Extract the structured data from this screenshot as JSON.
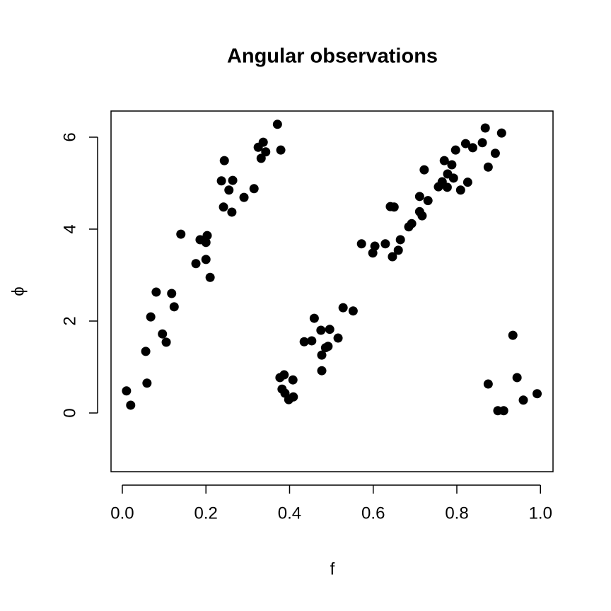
{
  "chart_data": {
    "type": "scatter",
    "title": "Angular observations",
    "x_label": "f",
    "y_label": "ϕ",
    "x": [
      0.01,
      0.02,
      0.056,
      0.059,
      0.068,
      0.081,
      0.096,
      0.105,
      0.118,
      0.124,
      0.14,
      0.176,
      0.186,
      0.2,
      0.2,
      0.203,
      0.21,
      0.237,
      0.244,
      0.242,
      0.255,
      0.264,
      0.262,
      0.291,
      0.315,
      0.325,
      0.332,
      0.337,
      0.343,
      0.371,
      0.379,
      0.377,
      0.382,
      0.387,
      0.389,
      0.398,
      0.408,
      0.409,
      0.435,
      0.453,
      0.459,
      0.475,
      0.477,
      0.477,
      0.486,
      0.492,
      0.496,
      0.516,
      0.528,
      0.552,
      0.572,
      0.599,
      0.604,
      0.629,
      0.641,
      0.65,
      0.646,
      0.66,
      0.665,
      0.685,
      0.692,
      0.711,
      0.711,
      0.717,
      0.722,
      0.731,
      0.756,
      0.765,
      0.77,
      0.777,
      0.778,
      0.788,
      0.792,
      0.797,
      0.809,
      0.821,
      0.826,
      0.838,
      0.861,
      0.868,
      0.875,
      0.892,
      0.907,
      0.875,
      0.898,
      0.912,
      0.934,
      0.944,
      0.959,
      0.992
    ],
    "values": [
      0.48,
      0.17,
      1.34,
      0.65,
      2.09,
      2.63,
      1.72,
      1.54,
      2.6,
      2.31,
      3.89,
      3.25,
      3.77,
      3.71,
      3.34,
      3.86,
      2.95,
      5.05,
      5.49,
      4.48,
      4.85,
      5.06,
      4.37,
      4.69,
      4.88,
      5.78,
      5.54,
      5.89,
      5.68,
      6.28,
      5.72,
      0.77,
      0.52,
      0.83,
      0.43,
      0.29,
      0.72,
      0.35,
      1.55,
      1.57,
      2.06,
      1.8,
      1.26,
      0.92,
      1.42,
      1.45,
      1.82,
      1.63,
      2.29,
      2.22,
      3.68,
      3.48,
      3.63,
      3.68,
      4.49,
      4.48,
      3.4,
      3.54,
      3.77,
      4.05,
      4.12,
      4.71,
      4.38,
      4.29,
      5.29,
      4.62,
      4.92,
      5.03,
      5.49,
      4.91,
      5.2,
      5.4,
      5.11,
      5.72,
      4.85,
      5.86,
      5.02,
      5.77,
      5.88,
      6.2,
      5.35,
      5.65,
      6.09,
      0.63,
      0.05,
      0.05,
      1.69,
      0.77,
      0.28,
      0.42
    ],
    "color": "#000000",
    "xlim": [
      -0.027,
      1.03
    ],
    "ylim": [
      -1.277,
      6.569
    ],
    "xticks": [
      {
        "value": 0,
        "label": "0.0"
      },
      0.2,
      0.4,
      0.6,
      0.8,
      {
        "value": 1,
        "label": "1.0"
      }
    ],
    "yticks": [
      0,
      2,
      4,
      6
    ]
  }
}
